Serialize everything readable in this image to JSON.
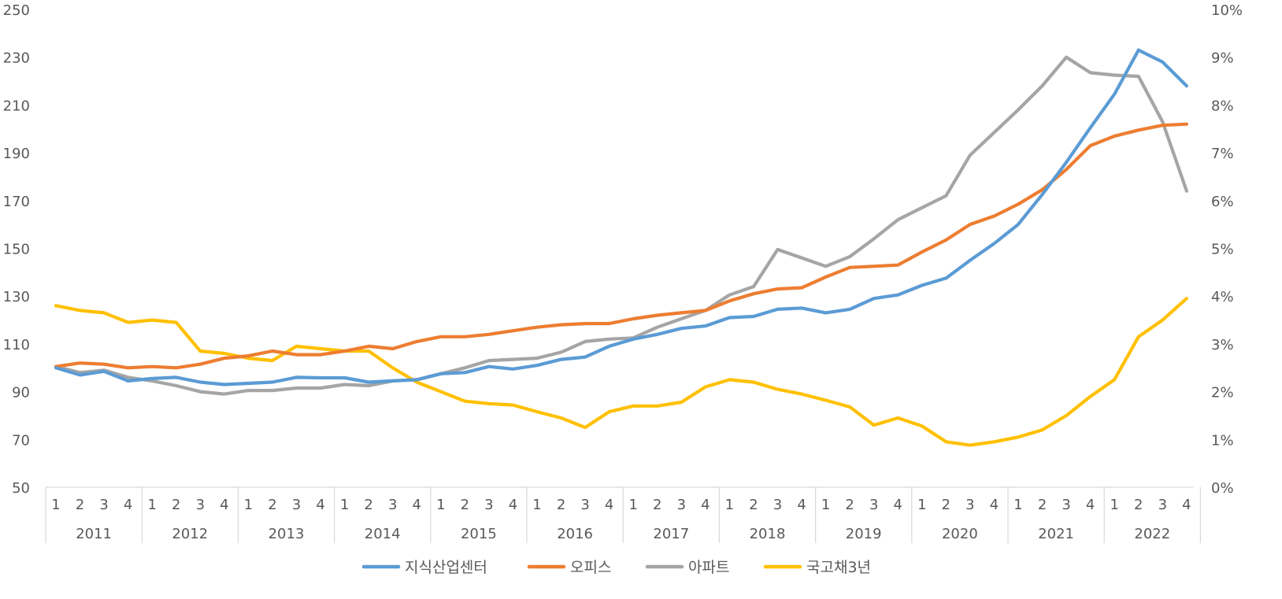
{
  "chart_data": {
    "type": "line",
    "title": "",
    "xlabel": "",
    "ylabel": "",
    "ylim": [
      50,
      250
    ],
    "y2lim": [
      0,
      10
    ],
    "y_ticks": [
      "250",
      "230",
      "210",
      "190",
      "170",
      "150",
      "130",
      "110",
      "90",
      "70",
      "50"
    ],
    "y2_ticks": [
      "10%",
      "9%",
      "8%",
      "7%",
      "6%",
      "5%",
      "4%",
      "3%",
      "2%",
      "1%",
      "0%"
    ],
    "years": [
      "2011",
      "2012",
      "2013",
      "2014",
      "2015",
      "2016",
      "2017",
      "2018",
      "2019",
      "2020",
      "2021",
      "2022"
    ],
    "quarters": [
      "1",
      "2",
      "3",
      "4"
    ],
    "legend_position": "bottom",
    "series": [
      {
        "name": "지식산업센터",
        "axis": "left",
        "color": "#5B9BD5",
        "values": [
          100,
          97,
          98.5,
          94.5,
          95.5,
          96,
          94,
          93,
          93.5,
          94,
          96,
          95.8,
          95.8,
          94,
          94.5,
          95,
          97.5,
          98,
          100.5,
          99.5,
          101,
          103.5,
          104.5,
          109,
          112,
          114,
          116.5,
          117.5,
          121,
          121.5,
          124.5,
          125,
          123,
          124.5,
          129,
          130.5,
          134.5,
          137.5,
          145,
          152,
          160,
          172.5,
          186,
          200.5,
          214.5,
          233,
          228,
          218
        ]
      },
      {
        "name": "오피스",
        "axis": "left",
        "color": "#ED7D31",
        "values": [
          100.5,
          102,
          101.5,
          100,
          100.5,
          100,
          101.5,
          104,
          105,
          107,
          105.5,
          105.5,
          107,
          109,
          108,
          111,
          113,
          113,
          114,
          115.5,
          117,
          118,
          118.5,
          118.5,
          120.5,
          122,
          123,
          124,
          128,
          131,
          133,
          133.5,
          138,
          142,
          142.5,
          143,
          148.5,
          153.5,
          160,
          163.5,
          168.5,
          174.5,
          183,
          193,
          197,
          199.5,
          201.5,
          202
        ]
      },
      {
        "name": "아파트",
        "axis": "left",
        "color": "#A5A5A5",
        "values": [
          100.5,
          98,
          99,
          96,
          94.5,
          92.5,
          90,
          89,
          90.5,
          90.5,
          91.5,
          91.5,
          93,
          92.5,
          94.5,
          95,
          97.5,
          100,
          103,
          103.5,
          104,
          106.5,
          111,
          112,
          112.5,
          117,
          120.5,
          124,
          130.5,
          134,
          149.5,
          146,
          142.5,
          146.5,
          154,
          162,
          167,
          172,
          189,
          198.5,
          208,
          218,
          230,
          223.5,
          222.5,
          222,
          203,
          174
        ]
      },
      {
        "name": "국고채3년",
        "axis": "right",
        "color": "#FFC000",
        "values": [
          3.8,
          3.7,
          3.65,
          3.45,
          3.5,
          3.45,
          2.85,
          2.8,
          2.7,
          2.65,
          2.95,
          2.9,
          2.85,
          2.85,
          2.5,
          2.2,
          2.0,
          1.8,
          1.75,
          1.72,
          1.58,
          1.45,
          1.25,
          1.58,
          1.7,
          1.7,
          1.78,
          2.1,
          2.25,
          2.2,
          2.05,
          1.95,
          1.82,
          1.68,
          1.3,
          1.45,
          1.28,
          0.95,
          0.88,
          0.95,
          1.05,
          1.2,
          1.5,
          1.9,
          2.25,
          3.15,
          3.5,
          3.95
        ]
      }
    ]
  }
}
